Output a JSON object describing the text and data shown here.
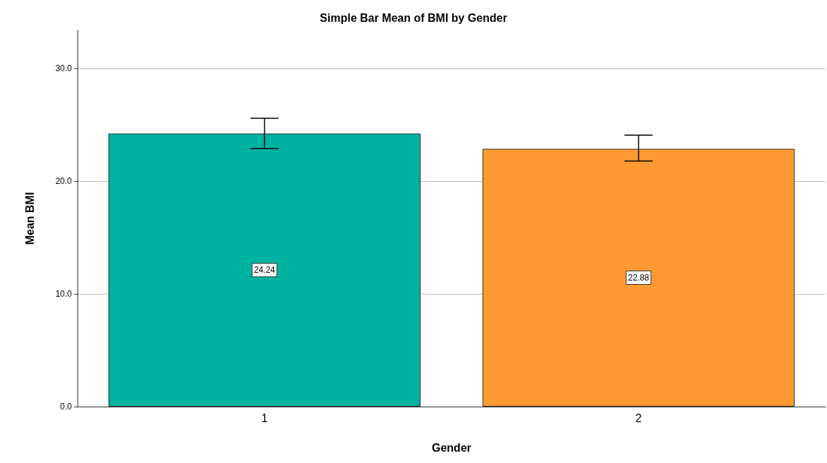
{
  "chart_data": {
    "type": "bar",
    "title": "Simple Bar Mean of BMI by Gender",
    "xlabel": "Gender",
    "ylabel": "Mean BMI",
    "categories": [
      "1",
      "2"
    ],
    "values": [
      24.24,
      22.88
    ],
    "colors": [
      "#00b2a0",
      "#ff9933"
    ],
    "errors": [
      [
        22.9,
        25.6
      ],
      [
        21.8,
        24.1
      ]
    ],
    "data_labels": true,
    "ylim": [
      0,
      33.4
    ],
    "yticks": [
      {
        "value": 0,
        "label": "0.0"
      },
      {
        "value": 10,
        "label": "10.0"
      },
      {
        "value": 20,
        "label": "20.0"
      },
      {
        "value": 30,
        "label": "30.0"
      }
    ],
    "grid": "y"
  }
}
